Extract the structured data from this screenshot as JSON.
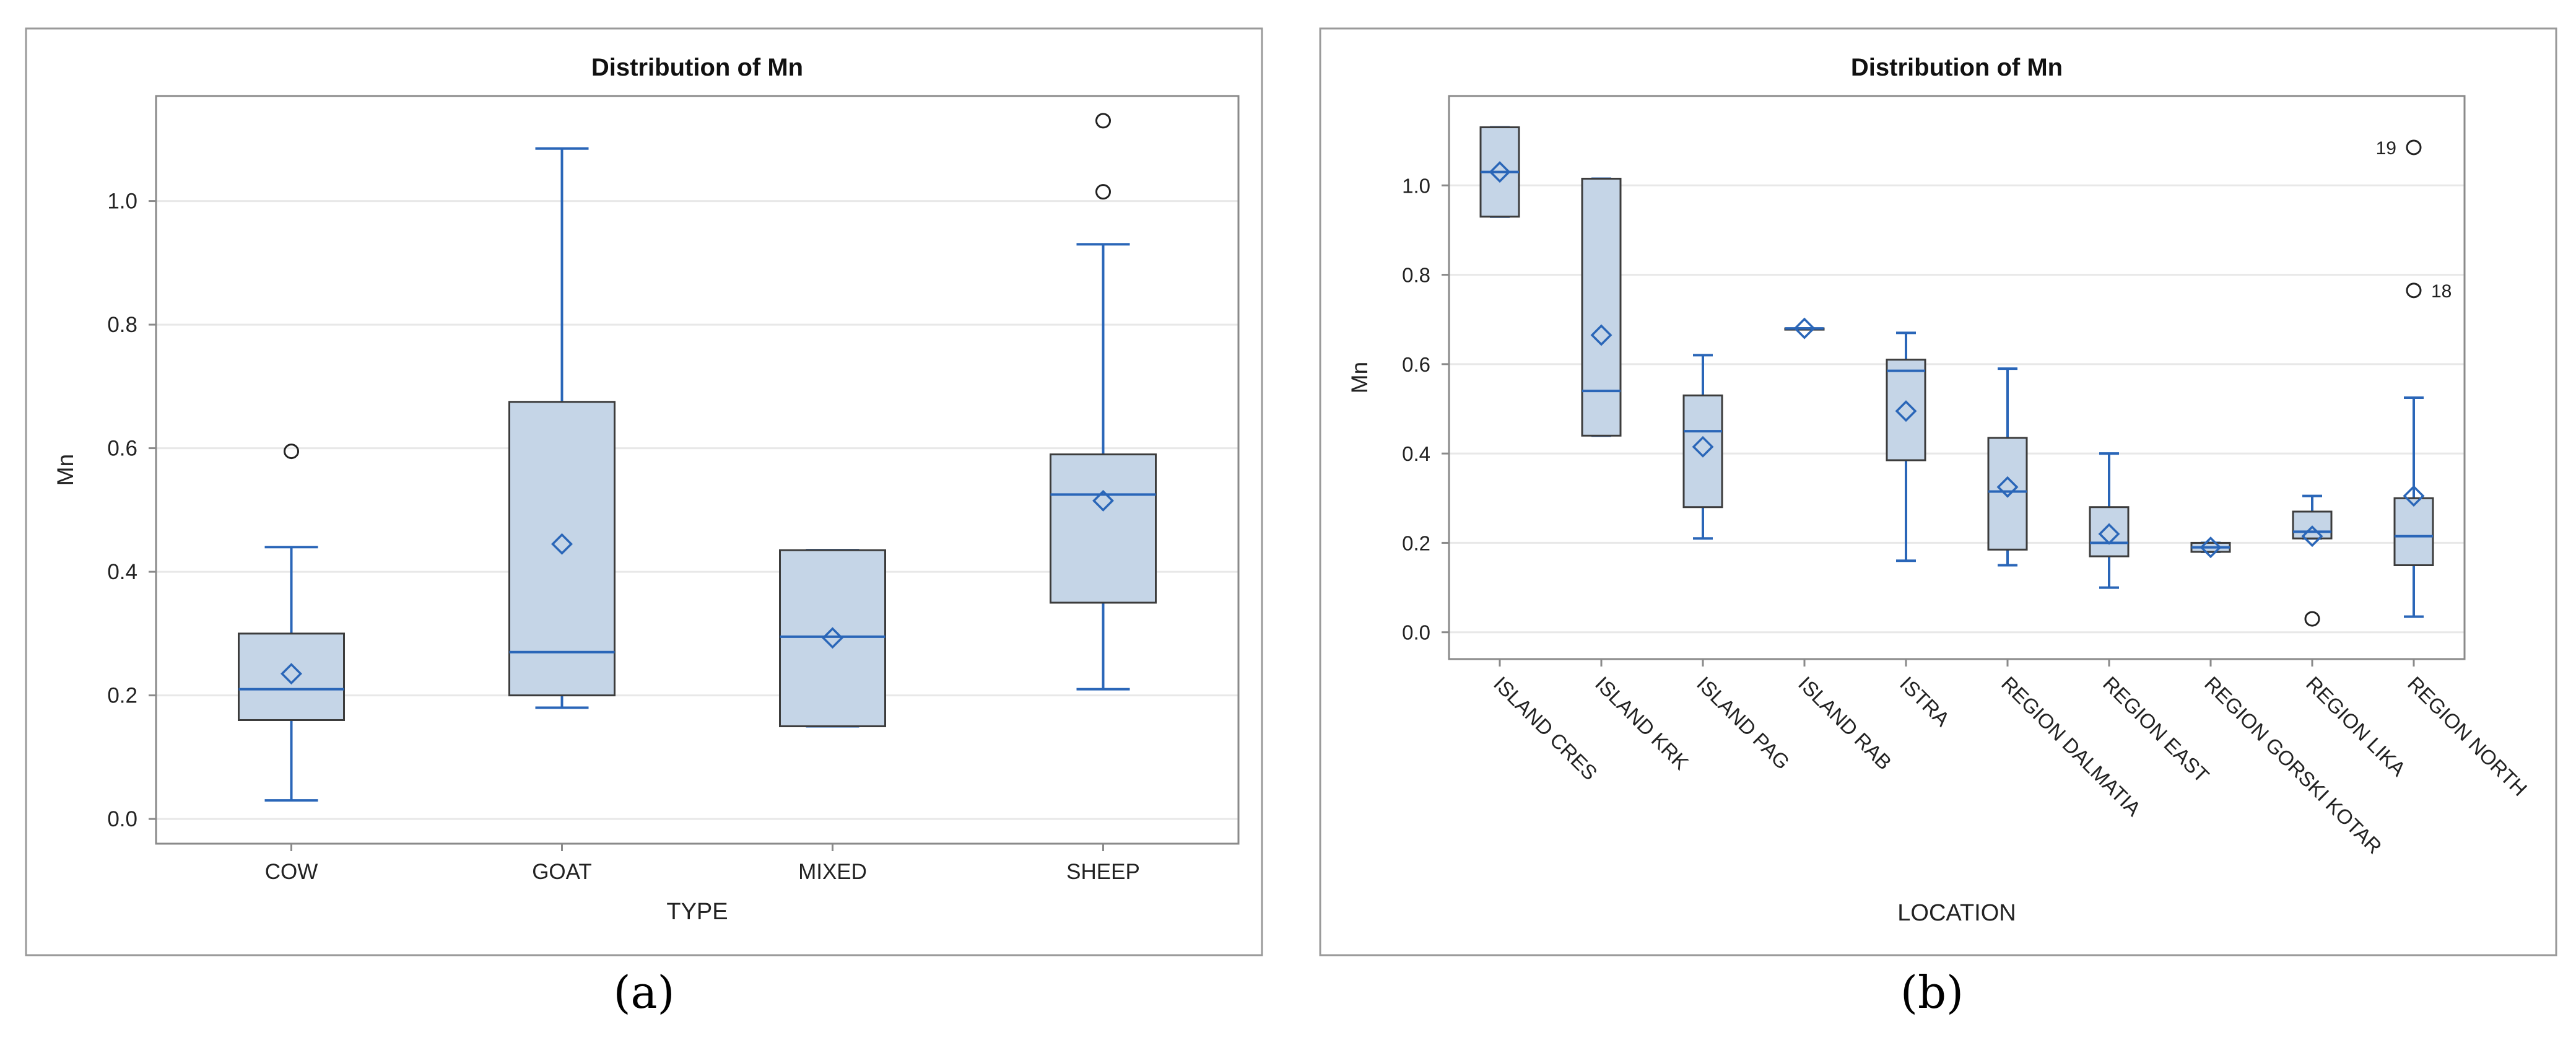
{
  "charts": [
    {
      "panel_label": "(a)",
      "chart_data": {
        "type": "box",
        "title": "Distribution of Mn",
        "xlabel": "TYPE",
        "ylabel": "Mn",
        "ylim": [
          -0.04,
          1.17
        ],
        "yticks": [
          0.0,
          0.2,
          0.4,
          0.6,
          0.8,
          1.0
        ],
        "ytick_labels": [
          "0.0",
          "0.2",
          "0.4",
          "0.6",
          "0.8",
          "1.0"
        ],
        "grid": true,
        "tick_label_rotation": 0,
        "categories": [
          "COW",
          "GOAT",
          "MIXED",
          "SHEEP"
        ],
        "boxes": [
          {
            "category": "COW",
            "whisker_low": 0.03,
            "q1": 0.16,
            "median": 0.21,
            "q3": 0.3,
            "whisker_high": 0.44,
            "mean": 0.235,
            "outliers": [
              {
                "value": 0.595,
                "label": ""
              }
            ]
          },
          {
            "category": "GOAT",
            "whisker_low": 0.18,
            "q1": 0.2,
            "median": 0.27,
            "q3": 0.675,
            "whisker_high": 1.085,
            "mean": 0.445,
            "outliers": []
          },
          {
            "category": "MIXED",
            "whisker_low": 0.15,
            "q1": 0.15,
            "median": 0.295,
            "q3": 0.435,
            "whisker_high": 0.435,
            "mean": 0.293,
            "outliers": []
          },
          {
            "category": "SHEEP",
            "whisker_low": 0.21,
            "q1": 0.35,
            "median": 0.525,
            "q3": 0.59,
            "whisker_high": 0.93,
            "mean": 0.515,
            "outliers": [
              {
                "value": 1.015,
                "label": ""
              },
              {
                "value": 1.13,
                "label": ""
              }
            ]
          }
        ]
      }
    },
    {
      "panel_label": "(b)",
      "chart_data": {
        "type": "box",
        "title": "Distribution of Mn",
        "xlabel": "LOCATION",
        "ylabel": "Mn",
        "ylim": [
          -0.06,
          1.2
        ],
        "yticks": [
          0.0,
          0.2,
          0.4,
          0.6,
          0.8,
          1.0
        ],
        "ytick_labels": [
          "0.0",
          "0.2",
          "0.4",
          "0.6",
          "0.8",
          "1.0"
        ],
        "grid": true,
        "tick_label_rotation": 45,
        "categories": [
          "ISLAND CRES",
          "ISLAND KRK",
          "ISLAND PAG",
          "ISLAND RAB",
          "ISTRA",
          "REGION DALMATIA",
          "REGION EAST",
          "REGION GORSKI KOTAR",
          "REGION LIKA",
          "REGION NORTH"
        ],
        "boxes": [
          {
            "category": "ISLAND CRES",
            "whisker_low": 0.93,
            "q1": 0.93,
            "median": 1.03,
            "q3": 1.13,
            "whisker_high": 1.13,
            "mean": 1.03,
            "outliers": []
          },
          {
            "category": "ISLAND KRK",
            "whisker_low": 0.44,
            "q1": 0.44,
            "median": 0.54,
            "q3": 1.015,
            "whisker_high": 1.015,
            "mean": 0.665,
            "outliers": []
          },
          {
            "category": "ISLAND PAG",
            "whisker_low": 0.21,
            "q1": 0.28,
            "median": 0.45,
            "q3": 0.53,
            "whisker_high": 0.62,
            "mean": 0.415,
            "outliers": []
          },
          {
            "category": "ISLAND RAB",
            "whisker_low": 0.68,
            "q1": 0.68,
            "median": 0.68,
            "q3": 0.68,
            "whisker_high": 0.68,
            "mean": 0.68,
            "outliers": []
          },
          {
            "category": "ISTRA",
            "whisker_low": 0.16,
            "q1": 0.385,
            "median": 0.585,
            "q3": 0.61,
            "whisker_high": 0.67,
            "mean": 0.495,
            "outliers": []
          },
          {
            "category": "REGION DALMATIA",
            "whisker_low": 0.15,
            "q1": 0.185,
            "median": 0.315,
            "q3": 0.435,
            "whisker_high": 0.59,
            "mean": 0.325,
            "outliers": []
          },
          {
            "category": "REGION EAST",
            "whisker_low": 0.1,
            "q1": 0.17,
            "median": 0.2,
            "q3": 0.28,
            "whisker_high": 0.4,
            "mean": 0.22,
            "outliers": []
          },
          {
            "category": "REGION GORSKI KOTAR",
            "whisker_low": 0.18,
            "q1": 0.18,
            "median": 0.19,
            "q3": 0.2,
            "whisker_high": 0.2,
            "mean": 0.19,
            "outliers": []
          },
          {
            "category": "REGION LIKA",
            "whisker_low": 0.21,
            "q1": 0.21,
            "median": 0.225,
            "q3": 0.27,
            "whisker_high": 0.305,
            "mean": 0.215,
            "outliers": [
              {
                "value": 0.03,
                "label": ""
              }
            ]
          },
          {
            "category": "REGION NORTH",
            "whisker_low": 0.035,
            "q1": 0.15,
            "median": 0.215,
            "q3": 0.3,
            "whisker_high": 0.525,
            "mean": 0.305,
            "outliers": [
              {
                "value": 0.765,
                "label": "18"
              },
              {
                "value": 1.085,
                "label": "19"
              }
            ]
          }
        ]
      }
    }
  ]
}
